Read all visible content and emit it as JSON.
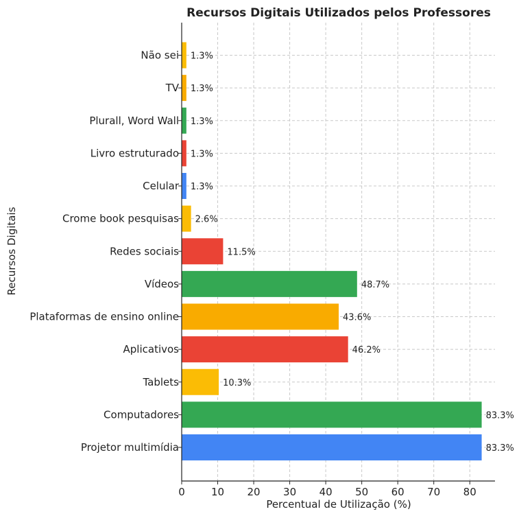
{
  "chart_data": {
    "type": "bar",
    "orientation": "horizontal",
    "title": "Recursos Digitais Utilizados pelos Professores",
    "xlabel": "Percentual de Utilização (%)",
    "ylabel": "Recursos Digitais",
    "xlim": [
      0,
      87
    ],
    "xticks": [
      0,
      10,
      20,
      30,
      40,
      50,
      60,
      70,
      80
    ],
    "grid": true,
    "categories": [
      "Projetor multimídia",
      "Computadores",
      "Tablets",
      "Aplicativos",
      "Plataformas de ensino online",
      "Vídeos",
      "Redes sociais",
      "Crome book pesquisas",
      "Celular",
      "Livro estruturado",
      "Plurall, Word Wall",
      "TV",
      "Não sei"
    ],
    "values": [
      83.3,
      83.3,
      10.3,
      46.2,
      43.6,
      48.7,
      11.5,
      2.6,
      1.3,
      1.3,
      1.3,
      1.3,
      1.3
    ],
    "value_labels": [
      "83.3%",
      "83.3%",
      "10.3%",
      "46.2%",
      "43.6%",
      "48.7%",
      "11.5%",
      "2.6%",
      "1.3%",
      "1.3%",
      "1.3%",
      "1.3%",
      "1.3%"
    ],
    "colors": [
      "#4285F4",
      "#34A853",
      "#FBBC05",
      "#EA4335",
      "#F9AB00",
      "#34A853",
      "#EA4335",
      "#FBBC05",
      "#4285F4",
      "#EA4335",
      "#34A853",
      "#F9AB00",
      "#FBBC05"
    ]
  }
}
